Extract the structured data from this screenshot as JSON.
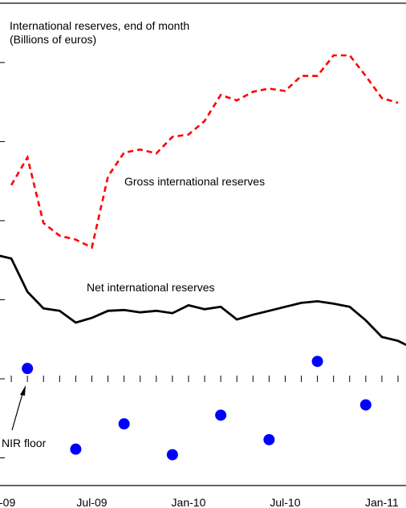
{
  "chart_data": {
    "type": "line",
    "title": "International reserves, end of month",
    "subtitle": "(Billions of euros)",
    "x_tick_labels": [
      "-09",
      "Jul-09",
      "Jan-10",
      "Jul-10",
      "Jan-11"
    ],
    "series": [
      {
        "name": "Gross international reserves",
        "style": "dashed",
        "color": "#ff0000",
        "x": [
          "Feb-09",
          "Mar-09",
          "Apr-09",
          "May-09",
          "Jun-09",
          "Jul-09",
          "Aug-09",
          "Sep-09",
          "Oct-09",
          "Nov-09",
          "Dec-09",
          "Jan-10",
          "Feb-10",
          "Mar-10",
          "Apr-10",
          "May-10",
          "Jun-10",
          "Jul-10",
          "Aug-10",
          "Sep-10",
          "Oct-10",
          "Nov-10",
          "Dec-10",
          "Jan-11",
          "Feb-11"
        ],
        "values": [
          2.45,
          2.8,
          1.97,
          1.81,
          1.76,
          1.66,
          2.56,
          2.86,
          2.9,
          2.85,
          3.06,
          3.09,
          3.26,
          3.59,
          3.52,
          3.63,
          3.67,
          3.64,
          3.83,
          3.83,
          4.09,
          4.09,
          3.83,
          3.55,
          3.49
        ]
      },
      {
        "name": "Net international reserves",
        "style": "solid",
        "color": "#000000",
        "x": [
          "Jan-09",
          "Feb-09",
          "Mar-09",
          "Apr-09",
          "May-09",
          "Jun-09",
          "Jul-09",
          "Aug-09",
          "Sep-09",
          "Oct-09",
          "Nov-09",
          "Dec-09",
          "Jan-10",
          "Feb-10",
          "Mar-10",
          "Apr-10",
          "May-10",
          "Jun-10",
          "Jul-10",
          "Aug-10",
          "Sep-10",
          "Oct-10",
          "Nov-10",
          "Dec-10",
          "Jan-11",
          "Feb-11",
          "Mar-11"
        ],
        "values": [
          1.57,
          1.52,
          1.1,
          0.89,
          0.86,
          0.71,
          0.77,
          0.86,
          0.87,
          0.84,
          0.86,
          0.83,
          0.93,
          0.88,
          0.91,
          0.75,
          0.81,
          0.86,
          0.91,
          0.96,
          0.98,
          0.95,
          0.91,
          0.74,
          0.53,
          0.48,
          0.38
        ]
      }
    ],
    "scatter": {
      "name": "NIR floor",
      "color": "#0000ff",
      "x": [
        "Mar-09",
        "Jun-09",
        "Sep-09",
        "Dec-09",
        "Mar-10",
        "Jun-10",
        "Sep-10",
        "Dec-10"
      ],
      "values": [
        0.13,
        -0.89,
        -0.57,
        -0.96,
        -0.46,
        -0.77,
        0.22,
        -0.33
      ]
    },
    "y_range": [
      -1.35,
      4.75
    ],
    "grid": false,
    "legend": "inline labels",
    "annotations": [
      {
        "text": "Gross international reserves",
        "series": "Gross international reserves"
      },
      {
        "text": "Net international reserves",
        "series": "Net international reserves"
      },
      {
        "text": "NIR floor",
        "series": "NIR floor"
      }
    ]
  }
}
